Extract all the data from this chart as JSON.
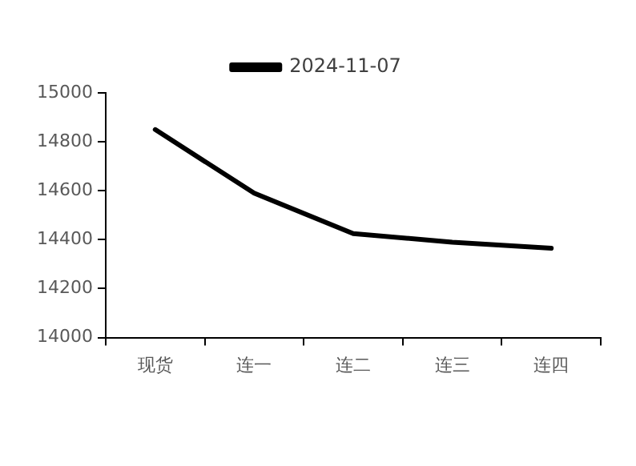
{
  "chart_data": {
    "type": "line",
    "categories": [
      "现货",
      "连一",
      "连二",
      "连三",
      "连四"
    ],
    "series": [
      {
        "name": "2024-11-07",
        "color": "#000000",
        "values": [
          14850,
          14590,
          14425,
          14390,
          14365
        ]
      }
    ],
    "ylim": [
      14000,
      15000
    ],
    "yticks": [
      14000,
      14200,
      14400,
      14600,
      14800,
      15000
    ],
    "grid": false,
    "legend": "top",
    "marker": "none",
    "line_style": "solid"
  }
}
